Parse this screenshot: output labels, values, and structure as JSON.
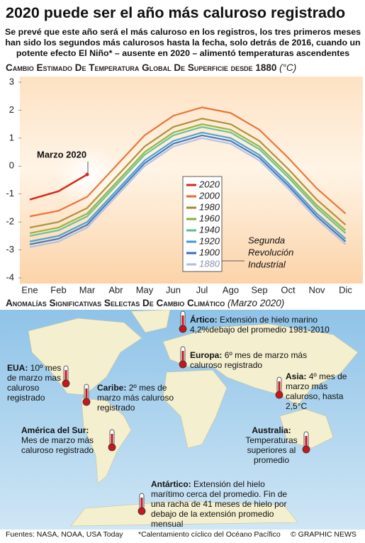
{
  "title": "2020 puede ser el año más caluroso registrado",
  "subtitle": "Se prevé que este año será el más caluroso en los registros, los tres primeros meses han sido los segundos más calurosos hasta la fecha, solo detrás de 2016, cuando un potente efecto El Niño* – ausente en 2020 – alimentó temperaturas ascendentes",
  "chart_data": {
    "type": "line",
    "title": "Cambio Estimado De Temperatura Global De Superficie desde 1880",
    "unit": "(°C)",
    "categories": [
      "Ene",
      "Feb",
      "Mar",
      "Abr",
      "May",
      "Jun",
      "Jul",
      "Ago",
      "Sep",
      "Oct",
      "Nov",
      "Dic"
    ],
    "series": [
      {
        "name": "2020",
        "color": "#d8261c",
        "values": [
          -1.2,
          -0.9,
          -0.3,
          null,
          null,
          null,
          null,
          null,
          null,
          null,
          null,
          null
        ]
      },
      {
        "name": "2000",
        "color": "#e8692a",
        "values": [
          -1.8,
          -1.6,
          -1.1,
          0.0,
          1.1,
          1.8,
          2.1,
          1.9,
          1.3,
          0.3,
          -0.8,
          -1.7
        ]
      },
      {
        "name": "1980",
        "color": "#a8862c",
        "values": [
          -2.2,
          -2.0,
          -1.5,
          -0.4,
          0.7,
          1.4,
          1.7,
          1.5,
          0.9,
          -0.1,
          -1.2,
          -2.1
        ]
      },
      {
        "name": "1960",
        "color": "#8aae3a",
        "values": [
          -2.4,
          -2.2,
          -1.7,
          -0.6,
          0.5,
          1.2,
          1.5,
          1.3,
          0.7,
          -0.3,
          -1.4,
          -2.3
        ]
      },
      {
        "name": "1940",
        "color": "#5bbf8a",
        "values": [
          -2.5,
          -2.3,
          -1.8,
          -0.7,
          0.4,
          1.1,
          1.4,
          1.2,
          0.6,
          -0.4,
          -1.5,
          -2.4
        ]
      },
      {
        "name": "1920",
        "color": "#3f9ad1",
        "values": [
          -2.7,
          -2.5,
          -2.0,
          -0.9,
          0.2,
          0.9,
          1.2,
          1.0,
          0.4,
          -0.6,
          -1.7,
          -2.6
        ]
      },
      {
        "name": "1900",
        "color": "#2f6fc0",
        "values": [
          -2.8,
          -2.6,
          -2.1,
          -1.0,
          0.1,
          0.8,
          1.1,
          0.9,
          0.3,
          -0.7,
          -1.8,
          -2.7
        ]
      },
      {
        "name": "1880",
        "color": "#aebde3",
        "values": [
          -2.9,
          -2.7,
          -2.2,
          -1.1,
          0.0,
          0.7,
          1.0,
          0.8,
          0.2,
          -0.8,
          -1.9,
          -2.8
        ]
      }
    ],
    "ylim": [
      -4,
      3
    ],
    "yticks": [
      3,
      2,
      1,
      0,
      -1,
      -2,
      -3,
      -4
    ],
    "annotations": [
      "Marzo 2020",
      "Segunda",
      "Revolución",
      "Industrial"
    ]
  },
  "map": {
    "title": "Anomalías Significativas Selectas De Cambio Climático",
    "subtitle": "(Marzo 2020)",
    "callouts": [
      {
        "heading": "Ártico:",
        "text": "Extensión de hielo marino 4,2%debajo del promedio 1981-2010"
      },
      {
        "heading": "Europa:",
        "text": "6º mes de marzo más caluroso registrado"
      },
      {
        "heading": "EUA:",
        "text": "10º mes de marzo mas caluroso registrado"
      },
      {
        "heading": "Caribe:",
        "text": "2º mes de marzo más caluroso registrado"
      },
      {
        "heading": "Asia:",
        "text": "4º mes de marzo más caluroso, hasta 2,5°C"
      },
      {
        "heading": "América del Sur:",
        "text": "Mes de marzo más caluroso registrado"
      },
      {
        "heading": "Australia:",
        "text": "Temperaturas superiores al promedio"
      },
      {
        "heading": "Antártico:",
        "text": "Extensión del hielo marítimo cerca del promedio. Fin de una racha de 41 meses de hielo por debajo de la extensión promedio mensual"
      }
    ]
  },
  "footer": {
    "sources": "Fuentes: NASA, NOAA, USA Today",
    "note": "*Calentamiento cíclico del Océano Pacífico",
    "credit": "© GRAPHIC NEWS"
  }
}
